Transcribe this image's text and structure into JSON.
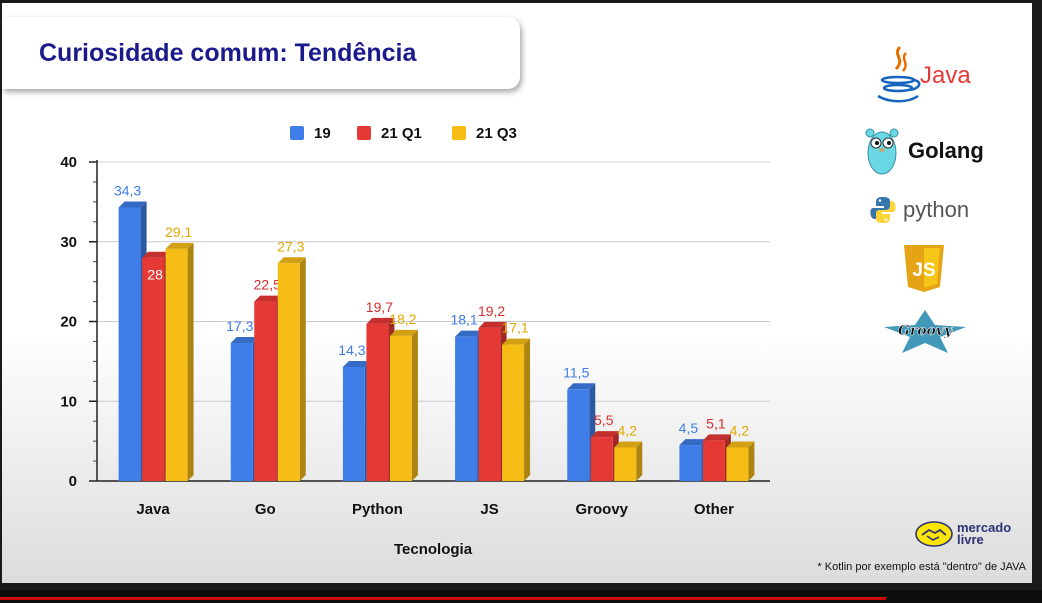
{
  "slide": {
    "title": "Curiosidade comum: Tendência",
    "footnote": "* Kotlin por exemplo está \"dentro\" de JAVA",
    "logos": [
      {
        "name": "Java",
        "icon": "java-cup-icon"
      },
      {
        "name": "Golang",
        "icon": "gopher-icon"
      },
      {
        "name": "python",
        "icon": "python-icon"
      },
      {
        "name": "JS",
        "icon": "js-shield-icon"
      },
      {
        "name": "Groovy",
        "icon": "groovy-star-icon"
      }
    ],
    "brand": {
      "line1": "mercado",
      "line2": "livre",
      "icon": "handshake-icon"
    }
  },
  "colors": {
    "title": "#1a1a8c",
    "series": [
      "#3f7ee8",
      "#e53935",
      "#f6bd16"
    ],
    "labels": [
      "#3f7ee8",
      "#d32f2f",
      "#e0a800"
    ]
  },
  "video": {
    "progress": 0.85
  },
  "chart_data": {
    "type": "bar",
    "categories": [
      "Java",
      "Go",
      "Python",
      "JS",
      "Groovy",
      "Other"
    ],
    "series": [
      {
        "name": "19",
        "values": [
          34.3,
          17.3,
          14.3,
          18.1,
          11.5,
          4.5
        ],
        "labels": [
          "34,3",
          "17,3",
          "14,3",
          "18,1",
          "11,5",
          "4,5"
        ]
      },
      {
        "name": "21 Q1",
        "values": [
          28,
          22.5,
          19.7,
          19.2,
          5.5,
          5.1
        ],
        "labels": [
          "28",
          "22,5",
          "19,7",
          "19,2",
          "5,5",
          "5,1"
        ]
      },
      {
        "name": "21 Q3",
        "values": [
          29.1,
          27.3,
          18.2,
          17.1,
          4.2,
          4.2
        ],
        "labels": [
          "29,1",
          "27,3",
          "18,2",
          "17,1",
          "4,2",
          "4,2"
        ]
      }
    ],
    "xlabel": "Tecnologia",
    "ylabel": "",
    "ylim": [
      0,
      40
    ],
    "yticks": [
      0,
      10,
      20,
      30,
      40
    ],
    "grid": true,
    "legend": "top-center",
    "style": "3d"
  }
}
